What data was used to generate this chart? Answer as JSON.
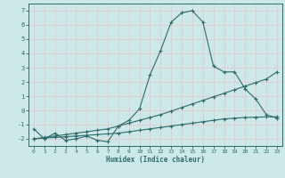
{
  "title": "",
  "xlabel": "Humidex (Indice chaleur)",
  "bg_color": "#cce8e8",
  "grid_color": "#e8c8c8",
  "line_color": "#2e6b6b",
  "xlim": [
    -0.5,
    23.5
  ],
  "ylim": [
    -2.5,
    7.5
  ],
  "xticks": [
    0,
    1,
    2,
    3,
    4,
    5,
    6,
    7,
    8,
    9,
    10,
    11,
    12,
    13,
    14,
    15,
    16,
    17,
    18,
    19,
    20,
    21,
    22,
    23
  ],
  "yticks": [
    -2,
    -1,
    0,
    1,
    2,
    3,
    4,
    5,
    6,
    7
  ],
  "curve1_x": [
    0,
    1,
    2,
    3,
    4,
    5,
    6,
    7,
    8,
    9,
    10,
    11,
    12,
    13,
    14,
    15,
    16,
    17,
    18,
    19,
    20,
    21,
    22,
    23
  ],
  "curve1_y": [
    -1.3,
    -2.0,
    -1.6,
    -2.1,
    -2.0,
    -1.8,
    -2.1,
    -2.2,
    -1.1,
    -0.7,
    0.1,
    2.5,
    4.2,
    6.2,
    6.85,
    7.0,
    6.2,
    3.1,
    2.7,
    2.7,
    1.5,
    0.8,
    -0.3,
    -0.55
  ],
  "curve2_x": [
    0,
    1,
    2,
    3,
    4,
    5,
    6,
    7,
    8,
    9,
    10,
    11,
    12,
    13,
    14,
    15,
    16,
    17,
    18,
    19,
    20,
    21,
    22,
    23
  ],
  "curve2_y": [
    -2.0,
    -1.9,
    -1.8,
    -1.7,
    -1.6,
    -1.5,
    -1.4,
    -1.3,
    -1.1,
    -0.9,
    -0.7,
    -0.5,
    -0.3,
    -0.05,
    0.2,
    0.45,
    0.7,
    0.95,
    1.2,
    1.45,
    1.7,
    1.95,
    2.2,
    2.7
  ],
  "curve3_x": [
    0,
    1,
    2,
    3,
    4,
    5,
    6,
    7,
    8,
    9,
    10,
    11,
    12,
    13,
    14,
    15,
    16,
    17,
    18,
    19,
    20,
    21,
    22,
    23
  ],
  "curve3_y": [
    -2.0,
    -1.95,
    -1.9,
    -1.85,
    -1.8,
    -1.75,
    -1.7,
    -1.65,
    -1.6,
    -1.5,
    -1.4,
    -1.3,
    -1.2,
    -1.1,
    -1.0,
    -0.9,
    -0.8,
    -0.7,
    -0.6,
    -0.55,
    -0.5,
    -0.48,
    -0.46,
    -0.45
  ]
}
